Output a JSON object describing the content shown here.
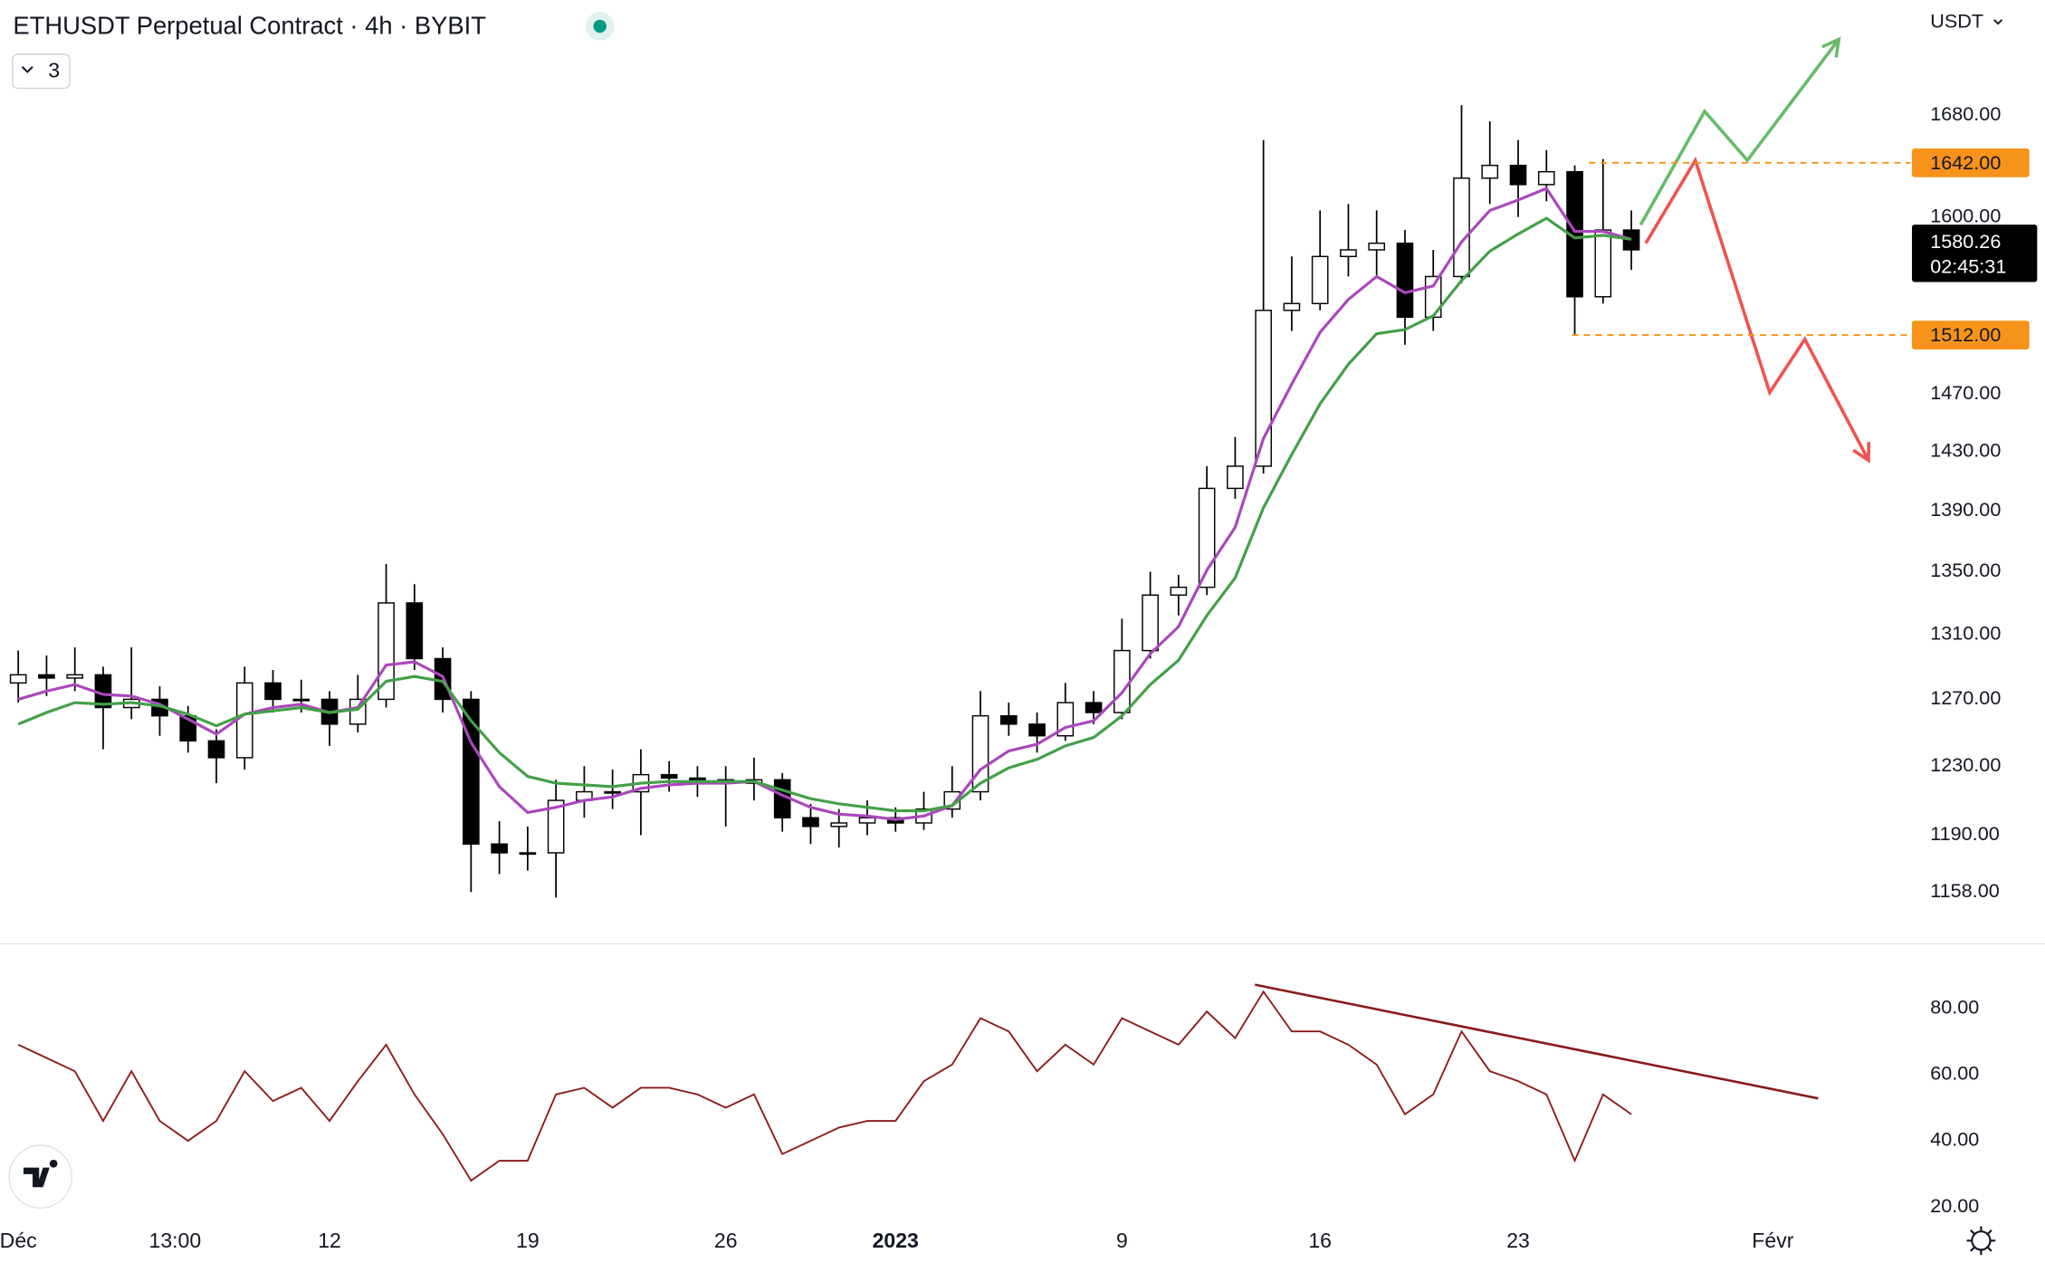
{
  "chart_data": [
    {
      "type": "candlestick",
      "title": "ETHUSDT Perpetual Contract · 4h · BYBIT",
      "indicator_count": 3,
      "currency": "USDT",
      "log_scale": true,
      "xlim": [
        -0.645,
        66.87
      ],
      "ylim": [
        1130,
        1775
      ],
      "xticks": [
        {
          "value": 0,
          "label": "Déc"
        },
        {
          "value": 5.54,
          "label": "13:00"
        },
        {
          "value": 11,
          "label": "12"
        },
        {
          "value": 18,
          "label": "19"
        },
        {
          "value": 25,
          "label": "26"
        },
        {
          "value": 31,
          "label": "2023"
        },
        {
          "value": 39,
          "label": "9"
        },
        {
          "value": 46,
          "label": "16"
        },
        {
          "value": 53,
          "label": "23"
        },
        {
          "value": 62,
          "label": "Févr"
        }
      ],
      "yticks": [
        {
          "value": 1158,
          "label": "1158.00"
        },
        {
          "value": 1190,
          "label": "1190.00"
        },
        {
          "value": 1230,
          "label": "1230.00"
        },
        {
          "value": 1270,
          "label": "1270.00"
        },
        {
          "value": 1310,
          "label": "1310.00"
        },
        {
          "value": 1350,
          "label": "1350.00"
        },
        {
          "value": 1390,
          "label": "1390.00"
        },
        {
          "value": 1430,
          "label": "1430.00"
        },
        {
          "value": 1470,
          "label": "1470.00"
        },
        {
          "value": 1600,
          "label": "1600.00"
        },
        {
          "value": 1680,
          "label": "1680.00"
        }
      ],
      "x": [
        0,
        1,
        2,
        3,
        4,
        5,
        6,
        7,
        8,
        9,
        10,
        11,
        12,
        13,
        14,
        15,
        16,
        17,
        18,
        19,
        20,
        21,
        22,
        23,
        24,
        25,
        26,
        27,
        28,
        29,
        30,
        31,
        32,
        33,
        34,
        35,
        36,
        37,
        38,
        39,
        40,
        41,
        42,
        43,
        44,
        45,
        46,
        47,
        48,
        49,
        50,
        51,
        52,
        53,
        54,
        55,
        56,
        57
      ],
      "open": [
        1280,
        1285,
        1283,
        1285,
        1265,
        1270,
        1260,
        1245,
        1235,
        1280,
        1270,
        1270,
        1255,
        1270,
        1330,
        1295,
        1270,
        1185,
        1180,
        1180,
        1210,
        1215,
        1215,
        1225,
        1223,
        1222,
        1220,
        1222,
        1200,
        1195,
        1197,
        1200,
        1197,
        1205,
        1215,
        1260,
        1255,
        1248,
        1268,
        1262,
        1300,
        1335,
        1340,
        1405,
        1420,
        1530,
        1535,
        1570,
        1575,
        1580,
        1525,
        1555,
        1630,
        1640,
        1625,
        1635,
        1540,
        1590
      ],
      "high": [
        1300,
        1297,
        1302,
        1290,
        1302,
        1278,
        1266,
        1252,
        1290,
        1288,
        1282,
        1275,
        1285,
        1355,
        1342,
        1302,
        1275,
        1198,
        1195,
        1222,
        1230,
        1228,
        1240,
        1233,
        1230,
        1230,
        1235,
        1226,
        1208,
        1205,
        1210,
        1206,
        1215,
        1230,
        1275,
        1268,
        1262,
        1280,
        1275,
        1320,
        1350,
        1348,
        1420,
        1440,
        1660,
        1570,
        1605,
        1610,
        1605,
        1590,
        1575,
        1688,
        1675,
        1660,
        1652,
        1640,
        1645,
        1605
      ],
      "low": [
        1268,
        1272,
        1275,
        1240,
        1258,
        1248,
        1238,
        1220,
        1228,
        1262,
        1262,
        1242,
        1250,
        1265,
        1288,
        1262,
        1158,
        1168,
        1170,
        1155,
        1200,
        1205,
        1190,
        1215,
        1212,
        1195,
        1210,
        1192,
        1185,
        1183,
        1190,
        1192,
        1193,
        1200,
        1210,
        1248,
        1238,
        1245,
        1255,
        1258,
        1295,
        1322,
        1335,
        1398,
        1415,
        1515,
        1530,
        1555,
        1555,
        1505,
        1515,
        1550,
        1610,
        1600,
        1612,
        1512,
        1535,
        1560
      ],
      "close": [
        1285,
        1283,
        1285,
        1265,
        1270,
        1260,
        1245,
        1235,
        1280,
        1270,
        1270,
        1255,
        1270,
        1330,
        1295,
        1270,
        1185,
        1180,
        1180,
        1210,
        1215,
        1215,
        1225,
        1223,
        1222,
        1220,
        1222,
        1200,
        1195,
        1197,
        1200,
        1197,
        1205,
        1215,
        1260,
        1255,
        1248,
        1268,
        1262,
        1300,
        1335,
        1340,
        1405,
        1420,
        1530,
        1535,
        1570,
        1575,
        1580,
        1525,
        1555,
        1630,
        1640,
        1625,
        1635,
        1540,
        1590,
        1575
      ],
      "overlays": [
        {
          "color": "#ab47bc",
          "values": [
            1270,
            1275,
            1279,
            1273,
            1272,
            1267,
            1258,
            1249,
            1261,
            1265,
            1267,
            1262,
            1265,
            1291,
            1293,
            1284,
            1244,
            1218,
            1203,
            1206,
            1210,
            1212,
            1217,
            1219,
            1220,
            1220,
            1221,
            1213,
            1206,
            1202,
            1201,
            1199,
            1201,
            1207,
            1228,
            1239,
            1243,
            1253,
            1257,
            1274,
            1298,
            1315,
            1351,
            1379,
            1439,
            1477,
            1514,
            1538,
            1555,
            1543,
            1548,
            1581,
            1605,
            1613,
            1622,
            1589,
            1589,
            1583
          ]
        },
        {
          "color": "#43a047",
          "values": [
            1255,
            1262,
            1268,
            1267,
            1268,
            1266,
            1261,
            1254,
            1261,
            1263,
            1265,
            1262,
            1264,
            1281,
            1284,
            1281,
            1257,
            1238,
            1224,
            1220,
            1219,
            1218,
            1220,
            1221,
            1221,
            1221,
            1221,
            1216,
            1211,
            1208,
            1206,
            1204,
            1204,
            1207,
            1220,
            1229,
            1234,
            1242,
            1247,
            1260,
            1279,
            1294,
            1322,
            1346,
            1392,
            1428,
            1463,
            1491,
            1513,
            1516,
            1526,
            1552,
            1574,
            1587,
            1599,
            1584,
            1586,
            1583
          ]
        }
      ],
      "price_lines": [
        {
          "value": 1642,
          "label": "1642.00",
          "x_start": 55.5,
          "color": "#f7931a"
        },
        {
          "value": 1512,
          "label": "1512.00",
          "x_start": 54.9,
          "color": "#f7931a"
        }
      ],
      "last_price": {
        "value": 1580.26,
        "countdown": "02:45:31"
      },
      "projections": [
        {
          "color": "#66bb6a",
          "x": [
            57.33,
            59.59,
            61.1,
            64.33
          ],
          "values": [
            1594,
            1683,
            1644,
            1742
          ]
        },
        {
          "color": "#ef5350",
          "x": [
            57.51,
            59.26,
            61.89,
            63.13,
            65.38
          ],
          "values": [
            1580,
            1644,
            1471,
            1509,
            1424
          ]
        }
      ]
    },
    {
      "type": "line",
      "color": "#8b1a1a",
      "ylim": [
        15,
        100
      ],
      "yticks": [
        {
          "value": 20,
          "label": "20.00"
        },
        {
          "value": 40,
          "label": "40.00"
        },
        {
          "value": 60,
          "label": "60.00"
        },
        {
          "value": 80,
          "label": "80.00"
        }
      ],
      "values": [
        69,
        65,
        61,
        46,
        61,
        46,
        40,
        46,
        61,
        52,
        56,
        46,
        58,
        69,
        54,
        42,
        28,
        34,
        34,
        54,
        56,
        50,
        56,
        56,
        54,
        50,
        54,
        36,
        40,
        44,
        46,
        46,
        58,
        63,
        77,
        73,
        61,
        69,
        63,
        77,
        73,
        69,
        79,
        71,
        85,
        73,
        73,
        69,
        63,
        48,
        54,
        73,
        61,
        58,
        54,
        34,
        54,
        48
      ],
      "trendline": {
        "color": "#8b1a1a",
        "x": [
          43.7,
          63.6
        ],
        "values": [
          87.1,
          52.8
        ]
      }
    }
  ]
}
